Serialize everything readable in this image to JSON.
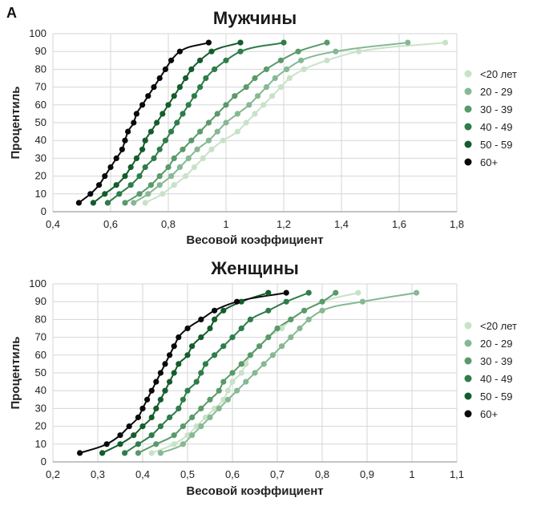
{
  "panel_label": "A",
  "legend": [
    "<20 лет",
    "20 - 29",
    "30 - 39",
    "40 - 49",
    "50 - 59",
    "60+"
  ],
  "series_colors": [
    "#c8e2c8",
    "#86b894",
    "#5a9a6a",
    "#2e7d4a",
    "#145c2c",
    "#0a0a0a"
  ],
  "chart_data": [
    {
      "type": "scatter",
      "title": "Мужчины",
      "xlabel": "Весовой коэффициент",
      "ylabel": "Процентиль",
      "xlim": [
        0.4,
        1.8
      ],
      "ylim": [
        0,
        100
      ],
      "x_ticks": [
        "0,4",
        "0,6",
        "0,8",
        "1",
        "1,2",
        "1,4",
        "1,6",
        "1,8"
      ],
      "x_tick_values": [
        0.4,
        0.6,
        0.8,
        1.0,
        1.2,
        1.4,
        1.6,
        1.8
      ],
      "y_ticks": [
        0,
        10,
        20,
        30,
        40,
        50,
        60,
        70,
        80,
        90,
        100
      ],
      "grid": true,
      "legend_position": "right",
      "series": [
        {
          "name": "<20 лет",
          "x": [
            0.72,
            0.78,
            0.82,
            0.86,
            0.89,
            0.92,
            0.95,
            0.99,
            1.04,
            1.07,
            1.1,
            1.13,
            1.16,
            1.19,
            1.22,
            1.27,
            1.35,
            1.46,
            1.76
          ],
          "y": [
            5,
            10,
            15,
            20,
            25,
            30,
            35,
            40,
            45,
            50,
            55,
            60,
            65,
            70,
            75,
            80,
            85,
            90,
            95
          ]
        },
        {
          "name": "20 - 29",
          "x": [
            0.68,
            0.73,
            0.77,
            0.81,
            0.84,
            0.87,
            0.9,
            0.94,
            0.97,
            1.0,
            1.04,
            1.08,
            1.11,
            1.14,
            1.17,
            1.21,
            1.26,
            1.38,
            1.63
          ],
          "y": [
            5,
            10,
            15,
            20,
            25,
            30,
            35,
            40,
            45,
            50,
            55,
            60,
            65,
            70,
            75,
            80,
            85,
            90,
            95
          ]
        },
        {
          "name": "30 - 39",
          "x": [
            0.65,
            0.7,
            0.74,
            0.77,
            0.8,
            0.82,
            0.85,
            0.88,
            0.91,
            0.94,
            0.97,
            1.0,
            1.03,
            1.07,
            1.1,
            1.14,
            1.19,
            1.25,
            1.35
          ],
          "y": [
            5,
            10,
            15,
            20,
            25,
            30,
            35,
            40,
            45,
            50,
            55,
            60,
            65,
            70,
            75,
            80,
            85,
            90,
            95
          ]
        },
        {
          "name": "40 - 49",
          "x": [
            0.59,
            0.63,
            0.67,
            0.7,
            0.72,
            0.75,
            0.77,
            0.79,
            0.81,
            0.83,
            0.85,
            0.87,
            0.89,
            0.91,
            0.93,
            0.96,
            1.0,
            1.05,
            1.2
          ],
          "y": [
            5,
            10,
            15,
            20,
            25,
            30,
            35,
            40,
            45,
            50,
            55,
            60,
            65,
            70,
            75,
            80,
            85,
            90,
            95
          ]
        },
        {
          "name": "50 - 59",
          "x": [
            0.54,
            0.58,
            0.62,
            0.65,
            0.67,
            0.69,
            0.71,
            0.72,
            0.74,
            0.76,
            0.78,
            0.8,
            0.82,
            0.84,
            0.86,
            0.88,
            0.91,
            0.95,
            1.05
          ],
          "y": [
            5,
            10,
            15,
            20,
            25,
            30,
            35,
            40,
            45,
            50,
            55,
            60,
            65,
            70,
            75,
            80,
            85,
            90,
            95
          ]
        },
        {
          "name": "60+",
          "x": [
            0.49,
            0.53,
            0.56,
            0.58,
            0.6,
            0.62,
            0.64,
            0.65,
            0.66,
            0.68,
            0.69,
            0.71,
            0.73,
            0.75,
            0.77,
            0.79,
            0.81,
            0.84,
            0.94
          ],
          "y": [
            5,
            10,
            15,
            20,
            25,
            30,
            35,
            40,
            45,
            50,
            55,
            60,
            65,
            70,
            75,
            80,
            85,
            90,
            95
          ]
        }
      ]
    },
    {
      "type": "scatter",
      "title": "Женщины",
      "xlabel": "Весовой коэффициент",
      "ylabel": "Процентиль",
      "xlim": [
        0.2,
        1.1
      ],
      "ylim": [
        0,
        100
      ],
      "x_ticks": [
        "0,2",
        "0,3",
        "0,4",
        "0,5",
        "0,6",
        "0,7",
        "0,8",
        "0,9",
        "1",
        "1,1"
      ],
      "x_tick_values": [
        0.2,
        0.3,
        0.4,
        0.5,
        0.6,
        0.7,
        0.8,
        0.9,
        1.0,
        1.1
      ],
      "y_ticks": [
        0,
        10,
        20,
        30,
        40,
        50,
        60,
        70,
        80,
        90,
        100
      ],
      "grid": true,
      "legend_position": "right",
      "series": [
        {
          "name": "<20 лет",
          "x": [
            0.42,
            0.47,
            0.5,
            0.52,
            0.54,
            0.56,
            0.58,
            0.59,
            0.6,
            0.62,
            0.63,
            0.64,
            0.66,
            0.68,
            0.71,
            0.73,
            0.76,
            0.8,
            0.88
          ],
          "y": [
            5,
            10,
            15,
            20,
            25,
            30,
            35,
            40,
            45,
            50,
            55,
            60,
            65,
            70,
            75,
            80,
            85,
            90,
            95
          ]
        },
        {
          "name": "20 - 29",
          "x": [
            0.44,
            0.49,
            0.51,
            0.53,
            0.55,
            0.57,
            0.59,
            0.61,
            0.63,
            0.65,
            0.67,
            0.69,
            0.71,
            0.73,
            0.75,
            0.77,
            0.8,
            0.89,
            1.01
          ],
          "y": [
            5,
            10,
            15,
            20,
            25,
            30,
            35,
            40,
            45,
            50,
            55,
            60,
            65,
            70,
            75,
            80,
            85,
            90,
            95
          ]
        },
        {
          "name": "30 - 39",
          "x": [
            0.39,
            0.43,
            0.47,
            0.49,
            0.51,
            0.53,
            0.55,
            0.57,
            0.58,
            0.6,
            0.62,
            0.64,
            0.66,
            0.68,
            0.7,
            0.73,
            0.76,
            0.8,
            0.83
          ],
          "y": [
            5,
            10,
            15,
            20,
            25,
            30,
            35,
            40,
            45,
            50,
            55,
            60,
            65,
            70,
            75,
            80,
            85,
            90,
            95
          ]
        },
        {
          "name": "40 - 49",
          "x": [
            0.36,
            0.39,
            0.42,
            0.44,
            0.46,
            0.48,
            0.49,
            0.5,
            0.52,
            0.53,
            0.54,
            0.56,
            0.58,
            0.6,
            0.62,
            0.64,
            0.68,
            0.72,
            0.77
          ],
          "y": [
            5,
            10,
            15,
            20,
            25,
            30,
            35,
            40,
            45,
            50,
            55,
            60,
            65,
            70,
            75,
            80,
            85,
            90,
            95
          ]
        },
        {
          "name": "50 - 59",
          "x": [
            0.31,
            0.35,
            0.38,
            0.4,
            0.42,
            0.43,
            0.44,
            0.45,
            0.46,
            0.47,
            0.48,
            0.5,
            0.51,
            0.53,
            0.55,
            0.56,
            0.58,
            0.62,
            0.68
          ],
          "y": [
            5,
            10,
            15,
            20,
            25,
            30,
            35,
            40,
            45,
            50,
            55,
            60,
            65,
            70,
            75,
            80,
            85,
            90,
            95
          ]
        },
        {
          "name": "60+",
          "x": [
            0.26,
            0.32,
            0.35,
            0.37,
            0.39,
            0.4,
            0.41,
            0.42,
            0.43,
            0.44,
            0.45,
            0.46,
            0.47,
            0.48,
            0.5,
            0.53,
            0.56,
            0.61,
            0.72
          ],
          "y": [
            5,
            10,
            15,
            20,
            25,
            30,
            35,
            40,
            45,
            50,
            55,
            60,
            65,
            70,
            75,
            80,
            85,
            90,
            95
          ]
        }
      ]
    }
  ]
}
